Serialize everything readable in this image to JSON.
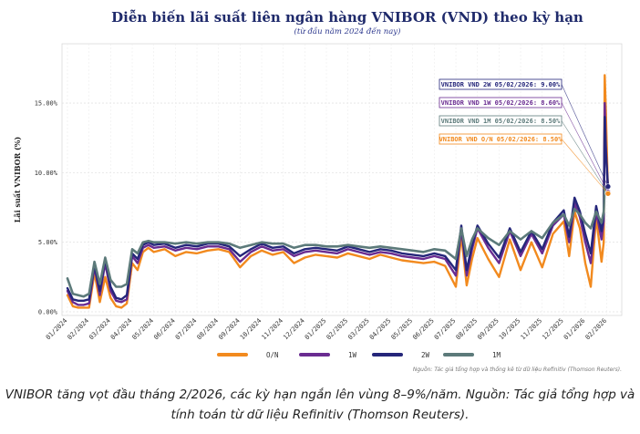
{
  "chart_data": {
    "type": "line",
    "title": "Diễn biến lãi suất liên ngân hàng VNIBOR (VND) theo kỳ hạn",
    "subtitle": "(từ đầu năm 2024 đến nay)",
    "ylabel": "Lãi suất VNIBOR (%)",
    "ylim": [
      0,
      19
    ],
    "yticks": [
      0,
      5,
      10,
      15
    ],
    "ytick_labels": [
      "0.00%",
      "5.00%",
      "10.00%",
      "15.00%"
    ],
    "x_tick_labels": [
      "01/2024",
      "02/2024",
      "03/2024",
      "04/2024",
      "05/2024",
      "06/2024",
      "07/2024",
      "08/2024",
      "09/2024",
      "10/2024",
      "11/2024",
      "12/2024",
      "01/2025",
      "02/2025",
      "03/2025",
      "04/2025",
      "05/2025",
      "06/2025",
      "07/2025",
      "08/2025",
      "09/2025",
      "10/2025",
      "11/2025",
      "12/2025",
      "01/2026",
      "02/2026"
    ],
    "grid": true,
    "legend_position": "bottom",
    "x": [
      0,
      0.25,
      0.5,
      0.75,
      1.0,
      1.25,
      1.5,
      1.75,
      2.0,
      2.25,
      2.5,
      2.75,
      3.0,
      3.25,
      3.5,
      3.75,
      4.0,
      4.5,
      5.0,
      5.5,
      6.0,
      6.5,
      7.0,
      7.5,
      8.0,
      8.5,
      9.0,
      9.5,
      10.0,
      10.5,
      11.0,
      11.5,
      12.0,
      12.5,
      13.0,
      13.5,
      14.0,
      14.5,
      15.0,
      15.5,
      16.0,
      16.5,
      17.0,
      17.5,
      18.0,
      18.25,
      18.5,
      18.75,
      19.0,
      19.5,
      20.0,
      20.5,
      21.0,
      21.5,
      22.0,
      22.5,
      23.0,
      23.25,
      23.5,
      23.75,
      24.0,
      24.25,
      24.5,
      24.75,
      24.85,
      24.9,
      24.95,
      25.05
    ],
    "series": [
      {
        "name": "O/N",
        "color": "#f28a1e",
        "values": [
          1.2,
          0.4,
          0.3,
          0.3,
          0.3,
          2.8,
          0.7,
          2.5,
          1.0,
          0.4,
          0.3,
          0.6,
          3.5,
          3.0,
          4.3,
          4.6,
          4.3,
          4.5,
          4.0,
          4.3,
          4.2,
          4.4,
          4.5,
          4.3,
          3.2,
          4.0,
          4.4,
          4.1,
          4.3,
          3.5,
          3.9,
          4.1,
          4.0,
          3.9,
          4.2,
          4.0,
          3.8,
          4.1,
          3.9,
          3.7,
          3.6,
          3.5,
          3.6,
          3.3,
          1.8,
          5.5,
          1.9,
          3.8,
          5.3,
          3.8,
          2.5,
          5.2,
          3.0,
          5.0,
          3.2,
          5.6,
          6.5,
          4.0,
          7.2,
          6.0,
          3.5,
          1.8,
          6.8,
          3.6,
          5.0,
          17.0,
          14.5,
          8.5
        ]
      },
      {
        "name": "1W",
        "color": "#6a2c91",
        "values": [
          1.5,
          0.7,
          0.5,
          0.5,
          0.6,
          3.2,
          1.2,
          3.5,
          1.5,
          0.8,
          0.7,
          0.9,
          4.0,
          3.5,
          4.6,
          4.8,
          4.6,
          4.7,
          4.4,
          4.6,
          4.5,
          4.7,
          4.7,
          4.5,
          3.6,
          4.3,
          4.7,
          4.4,
          4.5,
          4.0,
          4.3,
          4.4,
          4.3,
          4.2,
          4.5,
          4.3,
          4.1,
          4.3,
          4.2,
          4.0,
          3.9,
          3.8,
          4.0,
          3.8,
          2.6,
          6.0,
          2.6,
          4.5,
          6.0,
          4.6,
          3.5,
          5.8,
          4.0,
          5.6,
          4.2,
          6.2,
          7.0,
          5.0,
          7.8,
          6.8,
          5.0,
          3.5,
          7.2,
          5.2,
          6.5,
          15.0,
          12.0,
          8.6
        ]
      },
      {
        "name": "2W",
        "color": "#25267a",
        "values": [
          1.7,
          0.9,
          0.8,
          0.8,
          0.9,
          3.4,
          1.5,
          3.8,
          1.8,
          1.0,
          0.9,
          1.2,
          4.2,
          3.8,
          4.8,
          5.0,
          4.8,
          4.9,
          4.6,
          4.8,
          4.7,
          4.9,
          4.9,
          4.7,
          4.0,
          4.5,
          4.9,
          4.6,
          4.7,
          4.2,
          4.5,
          4.6,
          4.5,
          4.4,
          4.7,
          4.5,
          4.3,
          4.5,
          4.4,
          4.2,
          4.1,
          4.0,
          4.2,
          4.0,
          3.0,
          6.2,
          3.0,
          4.8,
          6.2,
          4.9,
          3.9,
          6.0,
          4.3,
          5.8,
          4.5,
          6.4,
          7.3,
          5.4,
          8.2,
          7.2,
          5.6,
          4.2,
          7.6,
          5.8,
          7.0,
          14.0,
          11.5,
          9.0
        ]
      },
      {
        "name": "1M",
        "color": "#5c7a7a",
        "values": [
          2.4,
          1.3,
          1.2,
          1.1,
          1.3,
          3.6,
          2.0,
          3.9,
          2.3,
          1.8,
          1.8,
          2.0,
          4.5,
          4.2,
          5.0,
          5.1,
          5.0,
          5.0,
          4.9,
          5.0,
          4.9,
          5.0,
          5.0,
          4.9,
          4.6,
          4.8,
          5.0,
          4.9,
          4.9,
          4.6,
          4.8,
          4.8,
          4.7,
          4.7,
          4.8,
          4.7,
          4.6,
          4.7,
          4.6,
          4.5,
          4.4,
          4.3,
          4.5,
          4.4,
          3.8,
          6.0,
          4.0,
          5.2,
          6.0,
          5.3,
          4.8,
          5.8,
          5.2,
          5.8,
          5.3,
          6.4,
          7.0,
          6.2,
          7.4,
          7.0,
          6.4,
          6.0,
          7.2,
          6.4,
          7.2,
          9.0,
          8.5,
          8.5
        ]
      }
    ],
    "annotations": [
      {
        "text": "VNIBOR VND 2W 05/02/2026: 9.00%",
        "color": "#25267a",
        "value": 9.0
      },
      {
        "text": "VNIBOR VND 1W 05/02/2026: 8.60%",
        "color": "#6a2c91",
        "value": 8.6
      },
      {
        "text": "VNIBOR VND 1M 05/02/2026: 8.50%",
        "color": "#5c7a7a",
        "value": 8.5
      },
      {
        "text": "VNIBOR VND O/N 05/02/2026: 8.50%",
        "color": "#f28a1e",
        "value": 8.5
      }
    ],
    "source_note": "Nguồn: Tác giả tổng hợp và thống kê từ dữ liệu Refinitiv (Thomson Reuters)."
  },
  "caption": "VNIBOR tăng vọt đầu tháng 2/2026, các kỳ hạn ngắn lên vùng 8–9%/năm. Nguồn: Tác giả tổng hợp và tính toán từ dữ liệu Refinitiv (Thomson Reuters)."
}
